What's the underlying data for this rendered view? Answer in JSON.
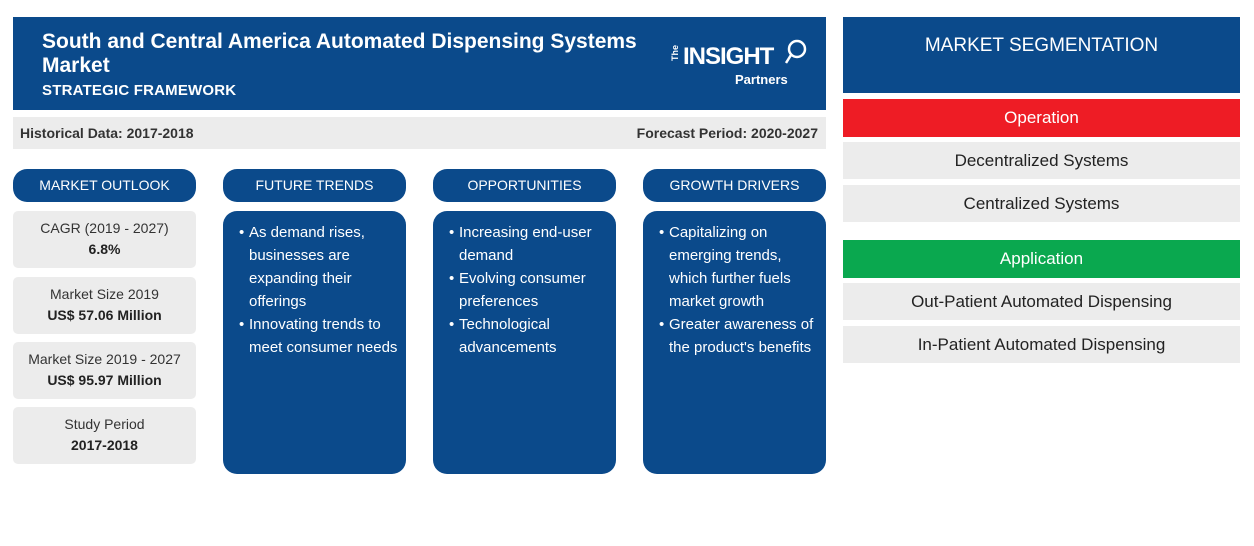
{
  "header": {
    "title": "South and Central America Automated Dispensing Systems Market",
    "subtitle": "STRATEGIC FRAMEWORK",
    "logo": {
      "the": "The",
      "insight": "INSIGHT",
      "partners": "Partners"
    }
  },
  "period": {
    "historical": "Historical Data: 2017-2018",
    "forecast": "Forecast Period: 2020-2027"
  },
  "columns": {
    "outlook": "MARKET OUTLOOK",
    "trends": "FUTURE TRENDS",
    "opportunities": "OPPORTUNITIES",
    "drivers": "GROWTH DRIVERS"
  },
  "outlook": [
    {
      "label": "CAGR (2019 - 2027)",
      "value": "6.8%"
    },
    {
      "label": "Market Size 2019",
      "value": "US$ 57.06 Million"
    },
    {
      "label": "Market Size 2019 - 2027",
      "value": "US$ 95.97 Million"
    },
    {
      "label": "Study Period",
      "value": "2017-2018"
    }
  ],
  "trends": [
    "As demand rises, businesses are expanding their offerings",
    "Innovating trends to meet consumer needs"
  ],
  "opportunities": [
    "Increasing end-user demand",
    "Evolving consumer preferences",
    "Technological advancements"
  ],
  "drivers": [
    "Capitalizing on emerging trends, which further fuels market growth",
    "Greater awareness of the product's benefits"
  ],
  "segmentation": {
    "title": "MARKET SEGMENTATION",
    "groups": [
      {
        "name": "Operation",
        "color": "#ee1c25",
        "items": [
          "Decentralized Systems",
          "Centralized Systems"
        ]
      },
      {
        "name": "Application",
        "color": "#0aa84f",
        "items": [
          "Out-Patient Automated Dispensing",
          "In-Patient Automated Dispensing"
        ]
      }
    ]
  },
  "colors": {
    "primary": "#0b4a8b",
    "panel_gray": "#ececec"
  }
}
